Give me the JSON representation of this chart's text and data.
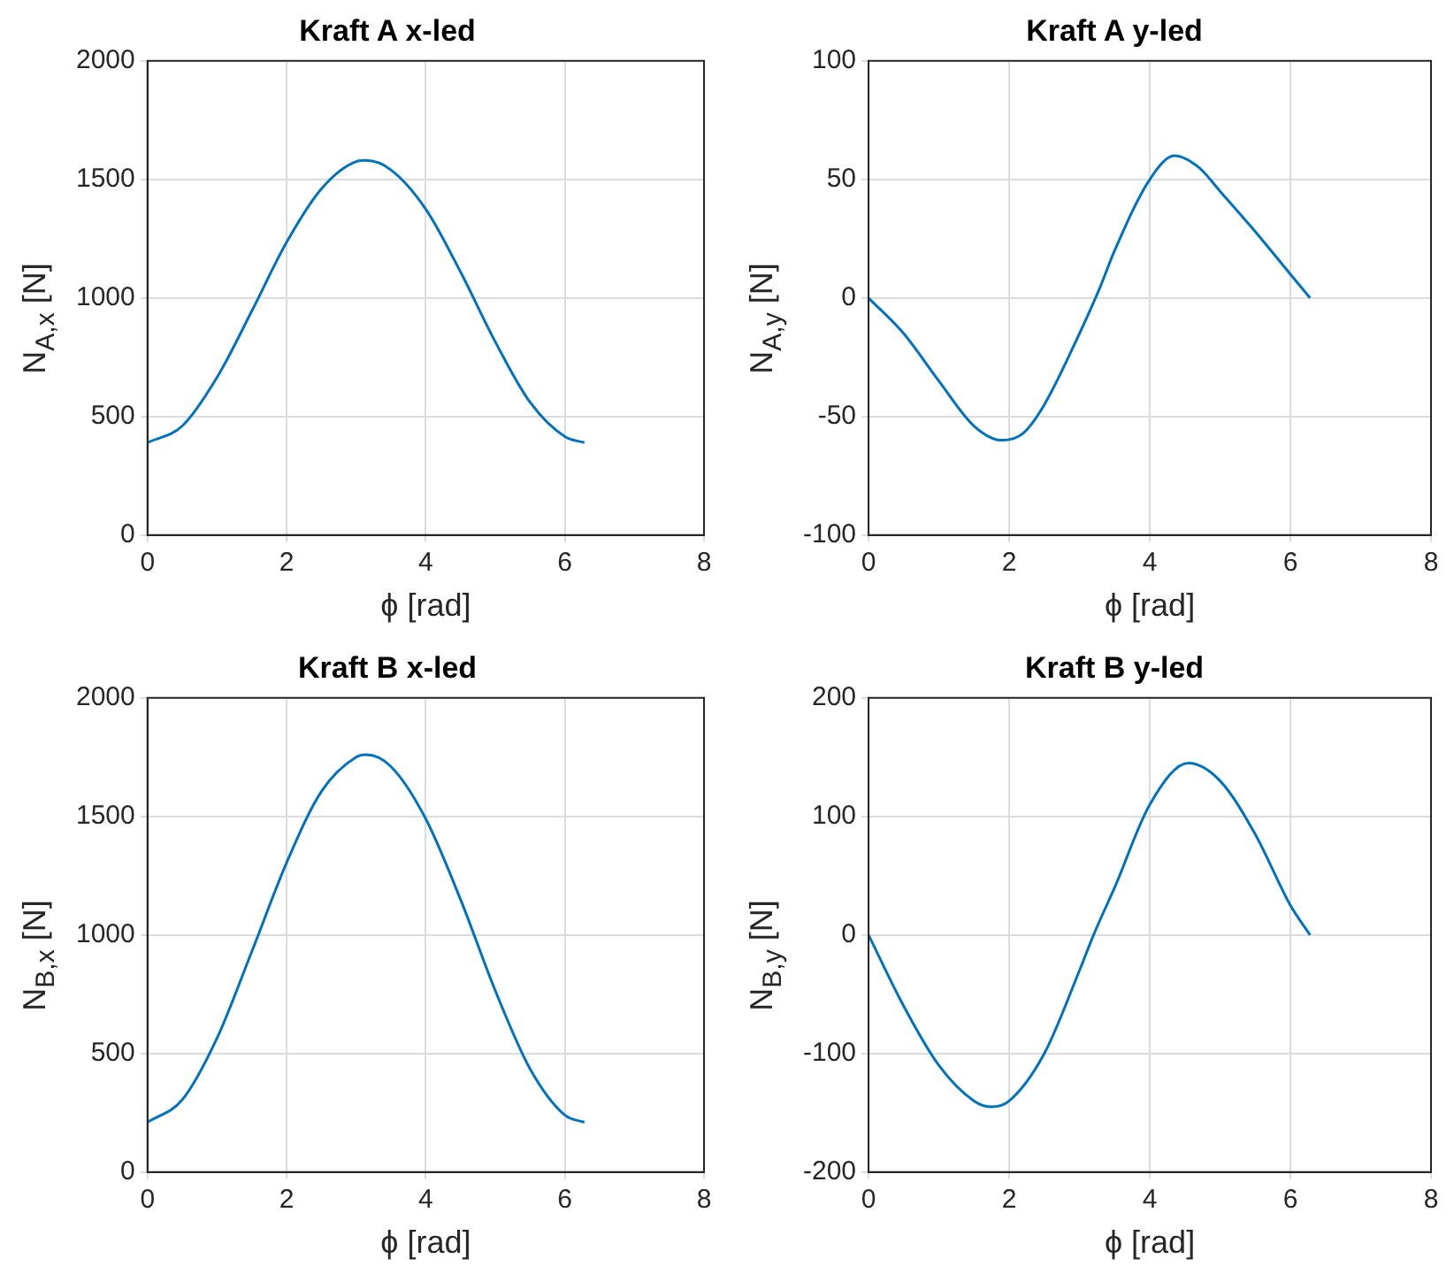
{
  "chart_data": [
    {
      "type": "line",
      "title": "Kraft A x-led",
      "xlabel": "ϕ [rad]",
      "ylabel": "N$_{A,x}$ [N]",
      "xlim": [
        0,
        8
      ],
      "xticks": [
        0,
        2,
        4,
        6,
        8
      ],
      "ylim": [
        0,
        2000
      ],
      "yticks": [
        0,
        500,
        1000,
        1500,
        2000
      ],
      "grid": true,
      "legend": false,
      "marker": "none",
      "line_style": "solid",
      "series": [
        {
          "color": "#0072bd",
          "x": [
            0,
            0.5,
            1,
            1.5,
            2,
            2.5,
            3,
            3.14,
            3.5,
            4,
            4.5,
            5,
            5.5,
            6,
            6.28
          ],
          "values": [
            390,
            460,
            665,
            945,
            1235,
            1460,
            1575,
            1580,
            1540,
            1375,
            1110,
            815,
            560,
            415,
            390
          ]
        }
      ]
    },
    {
      "type": "line",
      "title": "Kraft A y-led",
      "xlabel": "ϕ [rad]",
      "ylabel": "N$_{A,y}$ [N]",
      "xlim": [
        0,
        8
      ],
      "xticks": [
        0,
        2,
        4,
        6,
        8
      ],
      "ylim": [
        -100,
        100
      ],
      "yticks": [
        -100,
        -50,
        0,
        50,
        100
      ],
      "grid": true,
      "legend": false,
      "marker": "none",
      "line_style": "solid",
      "series": [
        {
          "color": "#0072bd",
          "x": [
            0,
            0.5,
            1,
            1.5,
            1.9,
            2.2,
            2.5,
            3,
            3.3,
            3.5,
            4,
            4.35,
            4.7,
            5,
            5.5,
            6,
            6.28
          ],
          "values": [
            0,
            -15,
            -35,
            -54,
            -60,
            -57,
            -45,
            -15,
            5,
            20,
            50,
            60,
            55,
            45,
            28,
            10,
            0
          ]
        }
      ]
    },
    {
      "type": "line",
      "title": "Kraft B x-led",
      "xlabel": "ϕ [rad]",
      "ylabel": "N$_{B,x}$ [N]",
      "xlim": [
        0,
        8
      ],
      "xticks": [
        0,
        2,
        4,
        6,
        8
      ],
      "ylim": [
        0,
        2000
      ],
      "yticks": [
        0,
        500,
        1000,
        1500,
        2000
      ],
      "grid": true,
      "legend": false,
      "marker": "none",
      "line_style": "solid",
      "series": [
        {
          "color": "#0072bd",
          "x": [
            0,
            0.5,
            1,
            1.5,
            2,
            2.5,
            3,
            3.14,
            3.5,
            4,
            4.5,
            5,
            5.5,
            6,
            6.28
          ],
          "values": [
            210,
            305,
            565,
            930,
            1305,
            1605,
            1750,
            1760,
            1710,
            1490,
            1150,
            765,
            435,
            240,
            210
          ]
        }
      ]
    },
    {
      "type": "line",
      "title": "Kraft B y-led",
      "xlabel": "ϕ [rad]",
      "ylabel": "N$_{B,y}$ [N]",
      "xlim": [
        0,
        8
      ],
      "xticks": [
        0,
        2,
        4,
        6,
        8
      ],
      "ylim": [
        -200,
        200
      ],
      "yticks": [
        -200,
        -100,
        0,
        100,
        200
      ],
      "grid": true,
      "legend": false,
      "marker": "none",
      "line_style": "solid",
      "series": [
        {
          "color": "#0072bd",
          "x": [
            0,
            0.5,
            1,
            1.5,
            1.75,
            2,
            2.5,
            3,
            3.2,
            3.5,
            4,
            4.55,
            5,
            5.5,
            6,
            6.28
          ],
          "values": [
            0,
            -60,
            -110,
            -140,
            -145,
            -140,
            -100,
            -30,
            0,
            40,
            110,
            145,
            130,
            85,
            25,
            0
          ]
        }
      ]
    }
  ]
}
